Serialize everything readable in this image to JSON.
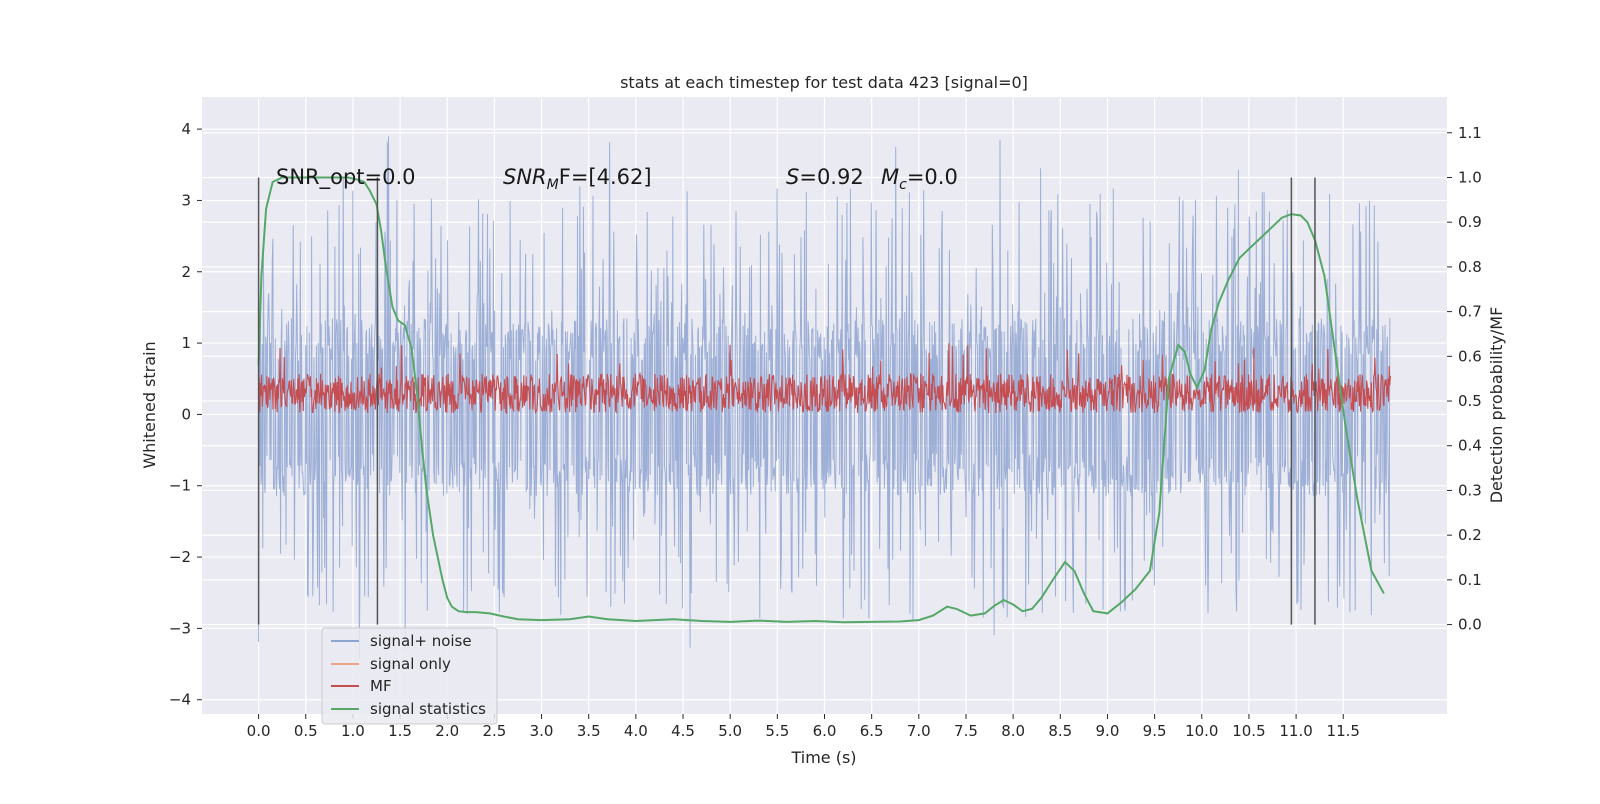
{
  "chart_data": {
    "type": "line",
    "title": "stats at each timestep for test data 423 [signal=0]",
    "xlabel": "Time (s)",
    "ylabel": "Whitened strain",
    "y2label": "Detection probability/MF",
    "xlim": [
      -0.6,
      12.6
    ],
    "ylim": [
      -4.2,
      4.45
    ],
    "y2lim": [
      -0.2,
      1.18
    ],
    "x_ticks": [
      "0.0",
      "0.5",
      "1.0",
      "1.5",
      "2.0",
      "2.5",
      "3.0",
      "3.5",
      "4.0",
      "4.5",
      "5.0",
      "5.5",
      "6.0",
      "6.5",
      "7.0",
      "7.5",
      "8.0",
      "8.5",
      "9.0",
      "9.5",
      "10.0",
      "10.5",
      "11.0",
      "11.5"
    ],
    "y_ticks": [
      "4",
      "3",
      "2",
      "1",
      "0",
      "−1",
      "−2",
      "−3",
      "−4"
    ],
    "y2_ticks": [
      "1.1",
      "1.0",
      "0.9",
      "0.8",
      "0.7",
      "0.6",
      "0.5",
      "0.4",
      "0.3",
      "0.2",
      "0.1",
      "0.0"
    ],
    "grid": true,
    "legend_position": "lower-left",
    "annotations": {
      "snr_opt": "SNR_opt=0.0",
      "snr_mf_sym": "SNR",
      "snr_mf_sub": "M",
      "snr_mf_rest": "F=[4.62]",
      "s_sym": "S",
      "s_val": "=0.92",
      "mc_sym": "M",
      "mc_sub": "c",
      "mc_val": "=0.0"
    },
    "vertical_markers": [
      0.0,
      1.26,
      10.95,
      11.2
    ],
    "series": [
      {
        "name": "signal+ noise",
        "axis": "left",
        "color": "#8fa5d1",
        "kind": "noise",
        "x_range": [
          0.0,
          12.0
        ],
        "band": [
          -1.15,
          1.35
        ],
        "peak": [
          -3.5,
          4.1
        ]
      },
      {
        "name": "signal only",
        "axis": "left",
        "color": "#e8a585",
        "kind": "flat",
        "values": []
      },
      {
        "name": "MF",
        "axis": "left",
        "color": "#c44e52",
        "kind": "noise",
        "x_range": [
          0.0,
          12.0
        ],
        "band": [
          0.0,
          0.5
        ],
        "peak": [
          0.0,
          1.0
        ]
      },
      {
        "name": "signal statistics",
        "axis": "right",
        "color": "#55a868",
        "kind": "line",
        "x": [
          0.0,
          0.03,
          0.08,
          0.15,
          0.25,
          0.4,
          0.6,
          0.8,
          0.95,
          1.05,
          1.12,
          1.18,
          1.25,
          1.3,
          1.35,
          1.42,
          1.48,
          1.55,
          1.62,
          1.68,
          1.73,
          1.78,
          1.85,
          1.95,
          2.0,
          2.05,
          2.12,
          2.2,
          2.3,
          2.45,
          2.6,
          2.75,
          3.0,
          3.3,
          3.5,
          3.7,
          4.0,
          4.4,
          4.7,
          5.0,
          5.3,
          5.6,
          5.9,
          6.2,
          6.5,
          6.8,
          7.0,
          7.15,
          7.3,
          7.4,
          7.55,
          7.7,
          7.8,
          7.9,
          8.0,
          8.1,
          8.2,
          8.3,
          8.42,
          8.55,
          8.65,
          8.75,
          8.85,
          9.0,
          9.15,
          9.3,
          9.45,
          9.55,
          9.65,
          9.75,
          9.82,
          9.88,
          9.95,
          10.03,
          10.1,
          10.18,
          10.28,
          10.4,
          10.55,
          10.7,
          10.85,
          10.95,
          11.05,
          11.12,
          11.2,
          11.3,
          11.4,
          11.52,
          11.65,
          11.8,
          11.93
        ],
        "values": [
          0.58,
          0.78,
          0.93,
          0.99,
          1.0,
          1.0,
          1.0,
          1.0,
          1.0,
          0.995,
          0.99,
          0.97,
          0.94,
          0.88,
          0.8,
          0.71,
          0.68,
          0.67,
          0.62,
          0.52,
          0.4,
          0.3,
          0.2,
          0.1,
          0.06,
          0.04,
          0.03,
          0.028,
          0.028,
          0.025,
          0.018,
          0.012,
          0.01,
          0.012,
          0.018,
          0.012,
          0.008,
          0.012,
          0.008,
          0.006,
          0.009,
          0.006,
          0.008,
          0.005,
          0.006,
          0.007,
          0.01,
          0.02,
          0.04,
          0.035,
          0.02,
          0.025,
          0.042,
          0.055,
          0.045,
          0.03,
          0.035,
          0.06,
          0.1,
          0.14,
          0.12,
          0.07,
          0.03,
          0.025,
          0.05,
          0.08,
          0.12,
          0.25,
          0.55,
          0.625,
          0.61,
          0.56,
          0.53,
          0.57,
          0.66,
          0.72,
          0.77,
          0.82,
          0.85,
          0.88,
          0.91,
          0.918,
          0.915,
          0.9,
          0.86,
          0.78,
          0.63,
          0.45,
          0.28,
          0.12,
          0.07
        ]
      }
    ]
  }
}
